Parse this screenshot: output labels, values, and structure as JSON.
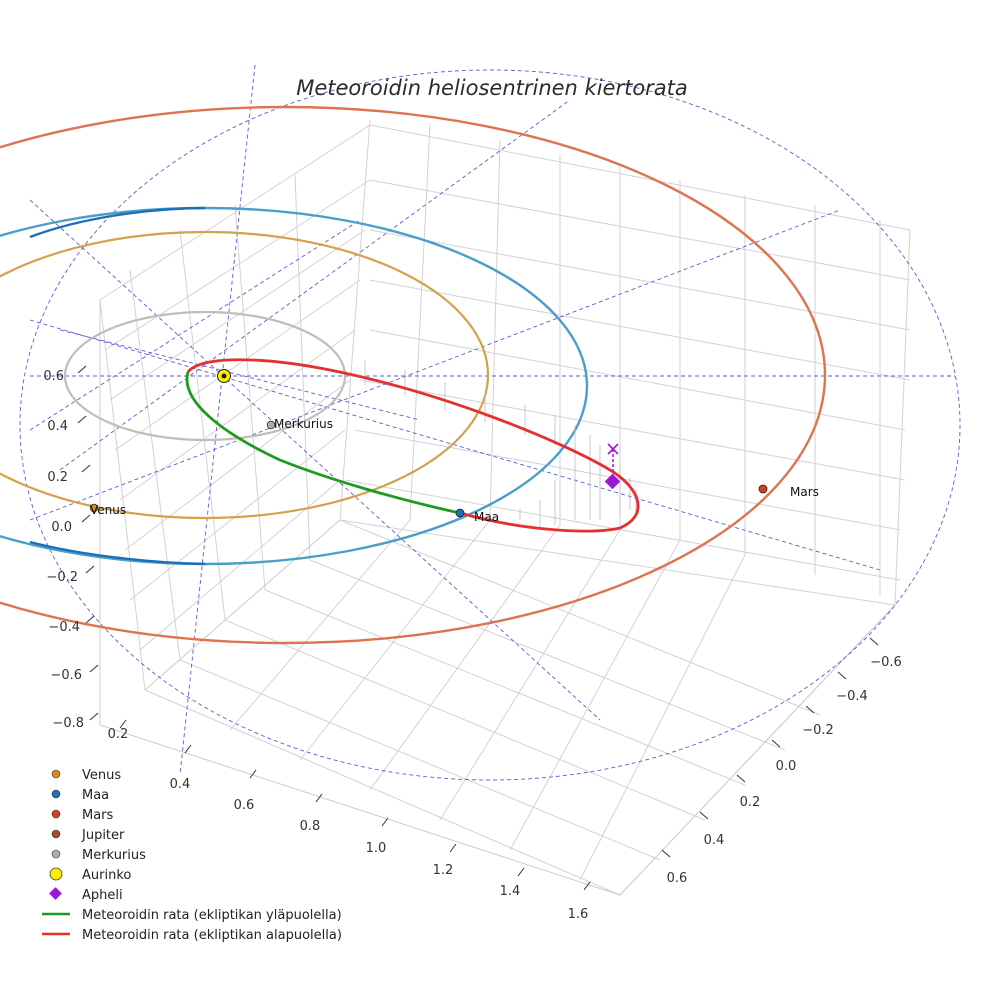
{
  "chart_data": {
    "type": "line",
    "subtype": "3d-orbit-plot",
    "title": "Meteoroidin heliosentrinen kiertorata",
    "x_ticks": [
      "0.2",
      "0.4",
      "0.6",
      "0.8",
      "1.0",
      "1.2",
      "1.4",
      "1.6"
    ],
    "y_ticks": [
      "−0.6",
      "−0.4",
      "−0.2",
      "0.0",
      "0.2",
      "0.4",
      "0.6"
    ],
    "z_ticks": [
      "0.6",
      "0.4",
      "0.2",
      "0.0",
      "−0.2",
      "−0.4",
      "−0.6",
      "−0.8"
    ],
    "grid": true,
    "bodies": [
      {
        "name": "Venus",
        "label": "Venus",
        "color": "#d98c1c"
      },
      {
        "name": "Maa",
        "label": "Maa",
        "color": "#1f6fb8"
      },
      {
        "name": "Mars",
        "label": "Mars",
        "color": "#d3401b"
      },
      {
        "name": "Merkurius",
        "label": "Merkurius",
        "color": "#b8aaa3"
      },
      {
        "name": "Aurinko",
        "label": "",
        "color": "#ffee00"
      }
    ],
    "orbits": [
      {
        "name": "Merkurius",
        "color": "#c2bcbc"
      },
      {
        "name": "Venus",
        "color": "#d4a24c"
      },
      {
        "name": "Maa",
        "color": "#4a9fc8"
      },
      {
        "name": "Mars",
        "color": "#de7350"
      }
    ],
    "meteoroid": [
      {
        "name": "Meteoroidin rata (ekliptikan yläpuolella)",
        "color": "#1e9a1e"
      },
      {
        "name": "Meteoroidin rata (ekliptikan alapuolella)",
        "color": "#e53030"
      }
    ],
    "aphelion": {
      "name": "Apheli",
      "color": "#9b18d6"
    },
    "legend_position": "bottom-left",
    "legend": [
      {
        "label": "Venus",
        "marker": "dot",
        "color": "#d98c1c"
      },
      {
        "label": "Maa",
        "marker": "dot",
        "color": "#1f6fb8"
      },
      {
        "label": "Mars",
        "marker": "dot",
        "color": "#d3401b"
      },
      {
        "label": "Jupiter",
        "marker": "dot",
        "color": "#a0522d"
      },
      {
        "label": "Merkurius",
        "marker": "dot",
        "color": "#b8aaa3"
      },
      {
        "label": "Aurinko",
        "marker": "sun",
        "color": "#ffee00"
      },
      {
        "label": "Apheli",
        "marker": "diamond",
        "color": "#9b18d6"
      },
      {
        "label": "Meteoroidin rata (ekliptikan yläpuolella)",
        "marker": "line",
        "color": "#1e9a1e"
      },
      {
        "label": "Meteoroidin rata (ekliptikan alapuolella)",
        "marker": "line",
        "color": "#e53030"
      }
    ]
  }
}
